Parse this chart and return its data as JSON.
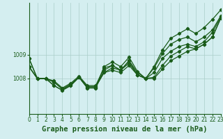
{
  "background_color": "#d4eef0",
  "grid_color": "#aacec8",
  "line_color": "#1a5c1a",
  "title": "Graphe pression niveau de la mer (hPa)",
  "xlim": [
    0,
    23
  ],
  "ylim": [
    1006.5,
    1011.2
  ],
  "yticks": [
    1008,
    1009
  ],
  "xticks": [
    0,
    1,
    2,
    3,
    4,
    5,
    6,
    7,
    8,
    9,
    10,
    11,
    12,
    13,
    14,
    15,
    16,
    17,
    18,
    19,
    20,
    21,
    22,
    23
  ],
  "series": [
    [
      1008.5,
      1008.0,
      1008.0,
      1007.85,
      1007.55,
      1007.75,
      1008.05,
      1007.65,
      1007.65,
      1008.25,
      1008.35,
      1008.25,
      1008.55,
      1008.15,
      1008.0,
      1008.0,
      1008.4,
      1008.75,
      1008.95,
      1009.15,
      1009.25,
      1009.45,
      1009.75,
      1010.55
    ],
    [
      1008.5,
      1008.0,
      1008.0,
      1007.85,
      1007.55,
      1007.75,
      1008.05,
      1007.65,
      1007.65,
      1008.25,
      1008.45,
      1008.35,
      1008.65,
      1008.15,
      1008.0,
      1008.25,
      1008.85,
      1009.15,
      1009.35,
      1009.45,
      1009.35,
      1009.55,
      1009.95,
      1010.6
    ],
    [
      1008.5,
      1008.0,
      1008.0,
      1007.9,
      1007.6,
      1007.8,
      1008.1,
      1007.7,
      1007.7,
      1008.45,
      1008.55,
      1008.35,
      1008.75,
      1008.25,
      1008.0,
      1008.45,
      1009.05,
      1009.45,
      1009.65,
      1009.75,
      1009.55,
      1009.75,
      1010.05,
      1010.65
    ],
    [
      1008.85,
      1008.0,
      1008.0,
      1007.7,
      1007.5,
      1007.7,
      1008.05,
      1007.6,
      1007.6,
      1008.35,
      1008.55,
      1008.35,
      1008.75,
      1008.15,
      1008.0,
      1008.05,
      1008.55,
      1008.95,
      1009.15,
      1009.35,
      1009.25,
      1009.45,
      1009.75,
      1010.55
    ]
  ],
  "series_top": [
    1008.85,
    1008.0,
    1008.0,
    1007.7,
    1007.5,
    1007.7,
    1008.05,
    1007.6,
    1007.6,
    1008.5,
    1008.7,
    1008.5,
    1008.9,
    1008.3,
    1008.0,
    1008.5,
    1009.2,
    1009.7,
    1009.9,
    1010.1,
    1009.9,
    1010.15,
    1010.5,
    1010.9
  ],
  "marker": "D",
  "markersize": 2.2,
  "linewidth": 0.9,
  "title_fontsize": 7.5,
  "tick_fontsize": 5.5
}
